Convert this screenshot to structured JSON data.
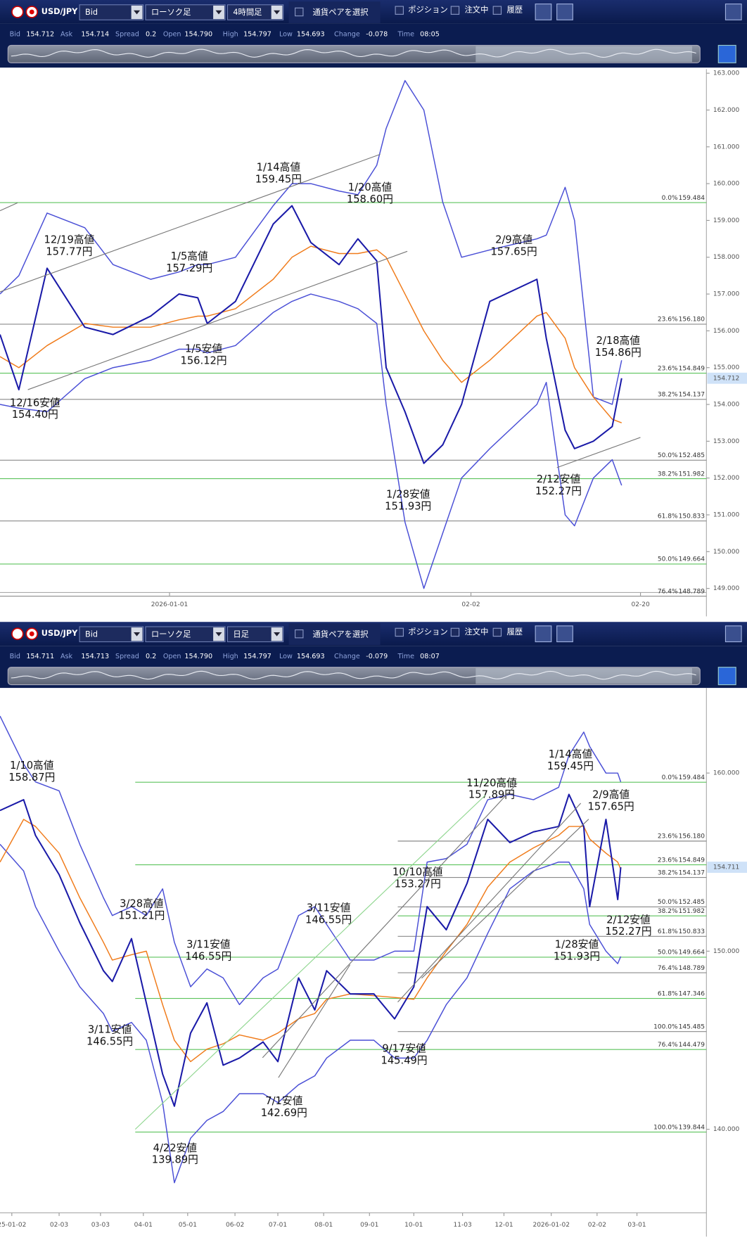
{
  "panels": [
    {
      "symbol": "USD/JPY",
      "price_type": "Bid",
      "chart_kind": "ローソク足",
      "timeframe": "4時間足",
      "pair_select": "通貨ペアを選択",
      "checks": [
        "ポジション",
        "注文中",
        "履歴"
      ],
      "info": [
        {
          "label": "Bid",
          "value": "154.712"
        },
        {
          "label": "Ask",
          "value": "154.714"
        },
        {
          "label": "Spread",
          "value": "0.2"
        },
        {
          "label": "Open",
          "value": "154.790"
        },
        {
          "label": "High",
          "value": "154.797"
        },
        {
          "label": "Low",
          "value": "154.693"
        },
        {
          "label": "Change",
          "value": "-0.078"
        },
        {
          "label": "Time",
          "value": "08:05"
        }
      ]
    },
    {
      "symbol": "USD/JPY",
      "price_type": "Bid",
      "chart_kind": "ローソク足",
      "timeframe": "日足",
      "pair_select": "通貨ペアを選択",
      "checks": [
        "ポジション",
        "注文中",
        "履歴"
      ],
      "info": [
        {
          "label": "Bid",
          "value": "154.711"
        },
        {
          "label": "Ask",
          "value": "154.713"
        },
        {
          "label": "Spread",
          "value": "0.2"
        },
        {
          "label": "Open",
          "value": "154.790"
        },
        {
          "label": "High",
          "value": "154.797"
        },
        {
          "label": "Low",
          "value": "154.693"
        },
        {
          "label": "Change",
          "value": "-0.079"
        },
        {
          "label": "Time",
          "value": "08:07"
        }
      ]
    }
  ],
  "chart_data": [
    {
      "type": "line",
      "x": [
        "2025-12-14",
        "2025-12-16",
        "2025-12-19",
        "2025-12-23",
        "2025-12-26",
        "2025-12-30",
        "2026-01-02",
        "2026-01-04",
        "2026-01-05",
        "2026-01-08",
        "2026-01-12",
        "2026-01-14",
        "2026-01-16",
        "2026-01-19",
        "2026-01-21",
        "2026-01-23",
        "2026-01-24",
        "2026-01-26",
        "2026-01-28",
        "2026-01-30",
        "2026-02-01",
        "2026-02-04",
        "2026-02-09",
        "2026-02-10",
        "2026-02-12",
        "2026-02-13",
        "2026-02-15",
        "2026-02-17",
        "2026-02-18"
      ],
      "series": [
        {
          "color": "#1a1aa8",
          "values": [
            155.9,
            154.4,
            157.7,
            156.1,
            155.9,
            156.4,
            157.0,
            156.9,
            156.2,
            156.8,
            158.9,
            159.4,
            158.4,
            157.8,
            158.5,
            157.9,
            155.0,
            153.8,
            152.4,
            152.9,
            154.0,
            156.8,
            157.4,
            155.8,
            153.3,
            152.8,
            153.0,
            153.4,
            154.712
          ]
        },
        {
          "color": "#f07b1a",
          "values": [
            155.3,
            155.0,
            155.6,
            156.2,
            156.1,
            156.1,
            156.3,
            156.4,
            156.4,
            156.6,
            157.4,
            158.0,
            158.3,
            158.1,
            158.1,
            158.2,
            158.0,
            157.0,
            156.0,
            155.2,
            154.6,
            155.2,
            156.4,
            156.5,
            155.8,
            155.0,
            154.2,
            153.6,
            153.5
          ]
        },
        {
          "color": "#4a4fd6",
          "values": [
            157.0,
            157.5,
            159.2,
            158.8,
            157.8,
            157.4,
            157.6,
            157.8,
            157.8,
            158.0,
            159.4,
            160.0,
            160.0,
            159.8,
            159.7,
            160.5,
            161.5,
            162.8,
            162.0,
            159.5,
            158.0,
            158.2,
            158.5,
            158.6,
            159.9,
            159.0,
            154.2,
            154.0,
            155.2
          ]
        },
        {
          "color": "#4a4fd6",
          "values": [
            154.0,
            153.9,
            153.8,
            154.7,
            155.0,
            155.2,
            155.5,
            155.5,
            155.4,
            155.6,
            156.5,
            156.8,
            157.0,
            156.8,
            156.6,
            156.2,
            154.0,
            150.8,
            149.0,
            150.5,
            152.0,
            152.8,
            154.0,
            154.6,
            151.0,
            150.7,
            152.0,
            152.5,
            151.8
          ]
        }
      ],
      "xlim": [
        "2025-12-14",
        "2026-02-27"
      ],
      "xticks": [
        "2026-01-01",
        {
          "value": "2026-02-02",
          "label": "02-02"
        },
        {
          "value": "2026-02-20",
          "label": "02-20"
        }
      ],
      "ylim": [
        148.89,
        163.11
      ],
      "yticks": [
        {
          "value": 149,
          "label": "149.000"
        },
        {
          "value": 150,
          "label": "150.000"
        },
        {
          "value": 151,
          "label": "151.000"
        },
        {
          "value": 152,
          "label": "152.000"
        },
        {
          "value": 153,
          "label": "153.000"
        },
        {
          "value": 154,
          "label": "154.000"
        },
        {
          "value": 155,
          "label": "155.000"
        },
        {
          "value": 156,
          "label": "156.000"
        },
        {
          "value": 157,
          "label": "157.000"
        },
        {
          "value": 158,
          "label": "158.000"
        },
        {
          "value": 159,
          "label": "159.000"
        },
        {
          "value": 160,
          "label": "160.000"
        },
        {
          "value": 161,
          "label": "161.000"
        },
        {
          "value": 162,
          "label": "162.000"
        },
        {
          "value": 163,
          "label": "163.000"
        }
      ],
      "price_tag": 154.712,
      "fib_levels": [
        {
          "pct": "0.0%",
          "value": 159.484,
          "label": "159.484",
          "color": "#5cc35c"
        },
        {
          "pct": "23.6%",
          "value": 156.18,
          "label": "156.180",
          "color": "#8a8a8a"
        },
        {
          "pct": "23.6%",
          "value": 154.849,
          "label": "154.849",
          "color": "#5cc35c"
        },
        {
          "pct": "38.2%",
          "value": 154.137,
          "label": "154.137",
          "color": "#8a8a8a"
        },
        {
          "pct": "50.0%",
          "value": 152.485,
          "label": "152.485",
          "color": "#8a8a8a"
        },
        {
          "pct": "38.2%",
          "value": 151.982,
          "label": "151.982",
          "color": "#5cc35c"
        },
        {
          "pct": "61.8%",
          "value": 150.833,
          "label": "150.833",
          "color": "#8a8a8a"
        },
        {
          "pct": "50.0%",
          "value": 149.664,
          "label": "149.664",
          "color": "#5cc35c"
        },
        {
          "pct": "76.4%",
          "value": 148.789,
          "label": "148.789",
          "color": "#8a8a8a"
        }
      ],
      "annotations": [
        {
          "text": "12/19高値",
          "price": "157.77円"
        },
        {
          "text": "1/14高値",
          "price": "159.45円"
        },
        {
          "text": "1/20高値",
          "price": "158.60円"
        },
        {
          "text": "1/5高値",
          "price": "157.29円"
        },
        {
          "text": "1/5安値",
          "price": "156.12円"
        },
        {
          "text": "12/16安値",
          "price": "154.40円"
        },
        {
          "text": "2/9高値",
          "price": "157.65円"
        },
        {
          "text": "2/18高値",
          "price": "154.86円"
        },
        {
          "text": "1/28安値",
          "price": "151.93円"
        },
        {
          "text": "2/12安値",
          "price": "152.27円"
        }
      ]
    },
    {
      "type": "line",
      "x": [
        "2024-12-25",
        "2025-01-10",
        "2025-01-18",
        "2025-02-03",
        "2025-02-17",
        "2025-03-05",
        "2025-03-11",
        "2025-03-24",
        "2025-04-03",
        "2025-04-14",
        "2025-04-22",
        "2025-05-03",
        "2025-05-14",
        "2025-05-25",
        "2025-06-05",
        "2025-06-21",
        "2025-07-01",
        "2025-07-15",
        "2025-07-26",
        "2025-08-03",
        "2025-08-19",
        "2025-09-04",
        "2025-09-18",
        "2025-10-01",
        "2025-10-10",
        "2025-10-23",
        "2025-11-06",
        "2025-11-20",
        "2025-12-05",
        "2025-12-21",
        "2026-01-07",
        "2026-01-14",
        "2026-01-24",
        "2026-01-28",
        "2026-02-08",
        "2026-02-16",
        "2026-02-18"
      ],
      "series": [
        {
          "color": "#1a1aa8",
          "values": [
            157.9,
            158.5,
            156.5,
            154.3,
            151.6,
            148.9,
            148.3,
            150.7,
            147.1,
            143.1,
            141.3,
            145.4,
            147.1,
            143.6,
            144.0,
            144.9,
            143.8,
            148.5,
            146.7,
            148.9,
            147.6,
            147.6,
            146.2,
            148.0,
            152.5,
            151.2,
            153.8,
            157.4,
            156.1,
            156.7,
            157.0,
            158.8,
            157.0,
            152.5,
            157.4,
            152.9,
            154.711
          ]
        },
        {
          "color": "#f07b1a",
          "values": [
            155.0,
            157.4,
            157.0,
            155.5,
            153.0,
            150.5,
            149.5,
            149.8,
            150.0,
            147.0,
            145.0,
            143.8,
            144.5,
            144.8,
            145.3,
            145.0,
            145.4,
            146.2,
            146.5,
            147.3,
            147.6,
            147.5,
            147.4,
            147.3,
            148.5,
            150.0,
            151.5,
            153.6,
            155.0,
            155.8,
            156.5,
            157.0,
            157.0,
            156.3,
            155.5,
            155.0,
            154.6
          ]
        },
        {
          "color": "#4a4fd6",
          "values": [
            163.2,
            160.5,
            159.5,
            159.0,
            156.0,
            153.0,
            152.0,
            152.5,
            152.0,
            153.5,
            150.5,
            148.0,
            149.0,
            148.5,
            147.0,
            148.5,
            149.0,
            152.0,
            152.5,
            151.5,
            149.5,
            149.5,
            150.0,
            150.0,
            155.0,
            155.2,
            156.0,
            158.5,
            158.8,
            158.5,
            159.2,
            161.0,
            162.3,
            161.5,
            160.0,
            160.0,
            159.5
          ]
        },
        {
          "color": "#4a4fd6",
          "values": [
            156.0,
            154.5,
            152.5,
            150.0,
            148.0,
            146.5,
            145.5,
            146.0,
            145.0,
            141.5,
            137.0,
            139.5,
            140.5,
            141.0,
            142.0,
            142.0,
            141.5,
            142.5,
            143.0,
            144.0,
            145.0,
            145.0,
            144.0,
            144.0,
            145.0,
            147.0,
            148.5,
            151.0,
            153.5,
            154.5,
            155.0,
            155.0,
            153.5,
            151.5,
            150.0,
            149.3,
            149.7
          ]
        }
      ],
      "xlim": [
        "2024-12-25",
        "2026-04-17"
      ],
      "xticks": [
        {
          "value": "2025-01-02",
          "label": "25-01-02"
        },
        {
          "value": "2025-02-03",
          "label": "02-03"
        },
        {
          "value": "2025-03-03",
          "label": "03-03"
        },
        {
          "value": "2025-04-01",
          "label": "04-01"
        },
        {
          "value": "2025-05-01",
          "label": "05-01"
        },
        {
          "value": "2025-06-02",
          "label": "06-02"
        },
        {
          "value": "2025-07-01",
          "label": "07-01"
        },
        {
          "value": "2025-08-01",
          "label": "08-01"
        },
        {
          "value": "2025-09-01",
          "label": "09-01"
        },
        {
          "value": "2025-10-01",
          "label": "10-01"
        },
        {
          "value": "2025-11-03",
          "label": "11-03"
        },
        {
          "value": "2025-12-01",
          "label": "12-01"
        },
        "2026-01-02",
        {
          "value": "2026-02-02",
          "label": "02-02"
        },
        {
          "value": "2026-03-01",
          "label": "03-01"
        }
      ],
      "ylim": [
        135.31,
        164.78
      ],
      "yticks": [
        {
          "value": 140,
          "label": "140.000"
        },
        {
          "value": 150,
          "label": "150.000"
        },
        {
          "value": 160,
          "label": "160.000"
        }
      ],
      "price_tag": 154.711,
      "fib_levels": [
        {
          "pct": "0.0%",
          "value": 159.484,
          "label": "159.484",
          "color": "#5cc35c"
        },
        {
          "pct": "23.6%",
          "value": 156.18,
          "label": "156.180",
          "color": "#8a8a8a"
        },
        {
          "pct": "23.6%",
          "value": 154.849,
          "label": "154.849",
          "color": "#5cc35c"
        },
        {
          "pct": "38.2%",
          "value": 154.137,
          "label": "154.137",
          "color": "#8a8a8a"
        },
        {
          "pct": "50.0%",
          "value": 152.485,
          "label": "152.485",
          "color": "#8a8a8a"
        },
        {
          "pct": "38.2%",
          "value": 151.982,
          "label": "151.982",
          "color": "#5cc35c"
        },
        {
          "pct": "61.8%",
          "value": 150.833,
          "label": "150.833",
          "color": "#8a8a8a"
        },
        {
          "pct": "50.0%",
          "value": 149.664,
          "label": "149.664",
          "color": "#5cc35c"
        },
        {
          "pct": "76.4%",
          "value": 148.789,
          "label": "148.789",
          "color": "#8a8a8a"
        },
        {
          "pct": "61.8%",
          "value": 147.346,
          "label": "147.346",
          "color": "#5cc35c"
        },
        {
          "pct": "100.0%",
          "value": 145.485,
          "label": "145.485",
          "color": "#8a8a8a"
        },
        {
          "pct": "76.4%",
          "value": 144.479,
          "label": "144.479",
          "color": "#5cc35c"
        },
        {
          "pct": "100.0%",
          "value": 139.844,
          "label": "139.844",
          "color": "#5cc35c"
        }
      ],
      "annotations": [
        {
          "text": "1/10高値",
          "price": "158.87円"
        },
        {
          "text": "3/28高値",
          "price": "151.21円"
        },
        {
          "text": "3/11安値",
          "price": "146.55円"
        },
        {
          "text": "3/11安値",
          "price": "146.55円"
        },
        {
          "text": "3/11安値",
          "price": "146.55円"
        },
        {
          "text": "4/22安値",
          "price": "139.89円"
        },
        {
          "text": "7/1安値",
          "price": "142.69円"
        },
        {
          "text": "9/17安値",
          "price": "145.49円"
        },
        {
          "text": "10/10高値",
          "price": "153.27円"
        },
        {
          "text": "11/20高値",
          "price": "157.89円"
        },
        {
          "text": "1/14高値",
          "price": "159.45円"
        },
        {
          "text": "2/9高値",
          "price": "157.65円"
        },
        {
          "text": "2/12安値",
          "price": "152.27円"
        },
        {
          "text": "1/28安値",
          "price": "151.93円"
        }
      ]
    }
  ]
}
